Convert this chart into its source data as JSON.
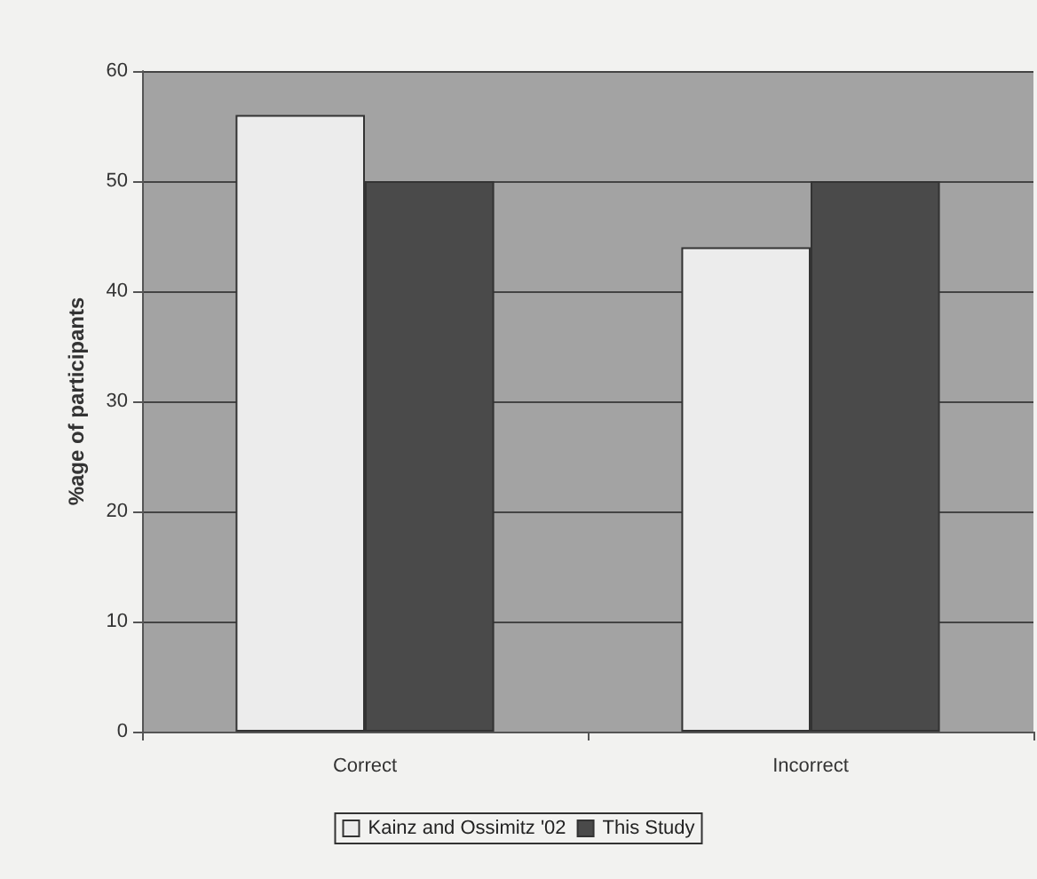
{
  "chart_data": {
    "type": "bar",
    "ylabel": "%age of participants",
    "categories": [
      "Correct",
      "Incorrect"
    ],
    "series": [
      {
        "name": "Kainz and Ossimitz '02",
        "color": "#ececec",
        "values": [
          56,
          44
        ]
      },
      {
        "name": "This Study",
        "color": "#4a4a4a",
        "values": [
          50,
          50
        ]
      }
    ],
    "ylim": [
      0,
      60
    ],
    "yticks": [
      0,
      10,
      20,
      30,
      40,
      50,
      60
    ],
    "grid": "y",
    "legend": "bottom"
  }
}
